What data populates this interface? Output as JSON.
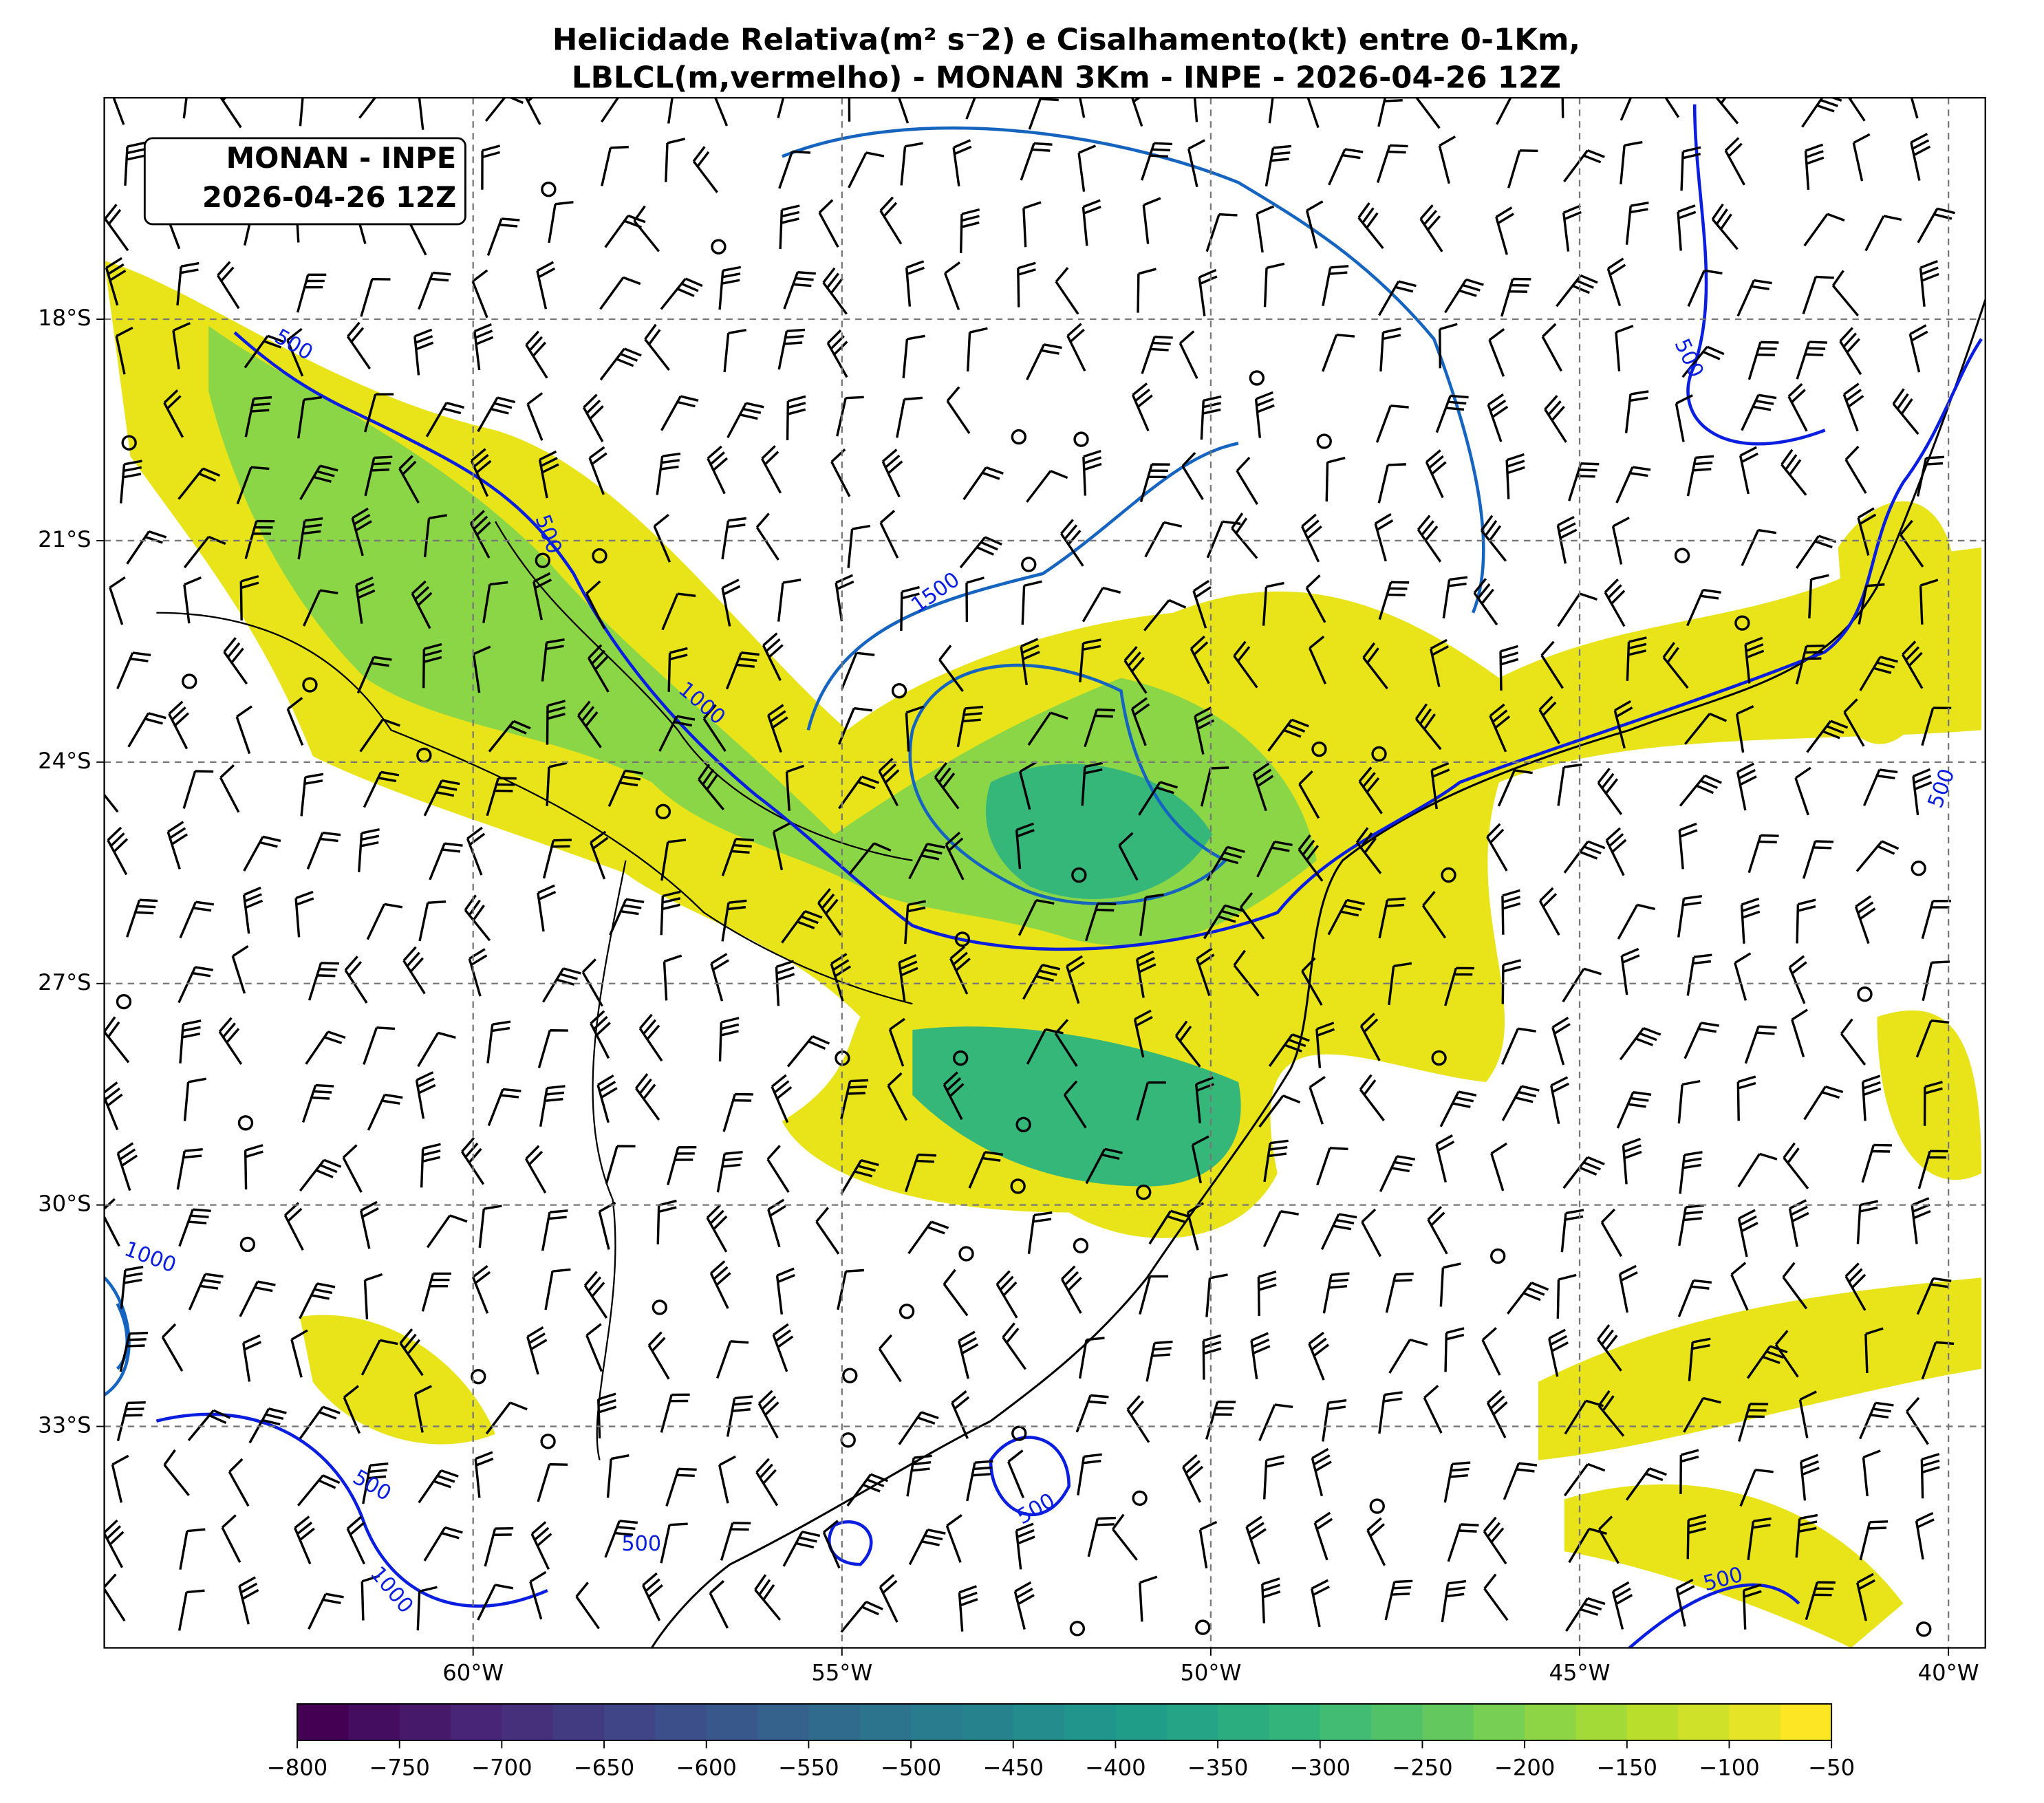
{
  "title": [
    "Helicidade Relativa(m² s⁻2) e Cisalhamento(kt) entre 0-1Km,",
    "LBLCL(m,vermelho) - MONAN 3Km - INPE - 2026-04-26 12Z"
  ],
  "annotation": [
    "MONAN - INPE",
    "2026-04-26 12Z"
  ],
  "map": {
    "lon_range": [
      -65,
      -39.5
    ],
    "lat_range": [
      -36,
      -15
    ],
    "lon_ticks": [
      {
        "value": -60,
        "label": "60°W"
      },
      {
        "value": -55,
        "label": "55°W"
      },
      {
        "value": -50,
        "label": "50°W"
      },
      {
        "value": -45,
        "label": "45°W"
      },
      {
        "value": -40,
        "label": "40°W"
      }
    ],
    "lat_ticks": [
      {
        "value": -18,
        "label": "18°S"
      },
      {
        "value": -21,
        "label": "21°S"
      },
      {
        "value": -24,
        "label": "24°S"
      },
      {
        "value": -27,
        "label": "27°S"
      },
      {
        "value": -30,
        "label": "30°S"
      },
      {
        "value": -33,
        "label": "33°S"
      }
    ],
    "contour_labels": [
      "500",
      "500",
      "1500",
      "1000",
      "500",
      "500",
      "1000",
      "500",
      "1000",
      "500",
      "500",
      "500"
    ]
  },
  "colorbar": {
    "range": [
      -800,
      -50
    ],
    "ticks": [
      {
        "value": -800,
        "label": "−800"
      },
      {
        "value": -750,
        "label": "−750"
      },
      {
        "value": -700,
        "label": "−700"
      },
      {
        "value": -650,
        "label": "−650"
      },
      {
        "value": -600,
        "label": "−600"
      },
      {
        "value": -550,
        "label": "−550"
      },
      {
        "value": -500,
        "label": "−500"
      },
      {
        "value": -450,
        "label": "−450"
      },
      {
        "value": -400,
        "label": "−400"
      },
      {
        "value": -350,
        "label": "−350"
      },
      {
        "value": -300,
        "label": "−300"
      },
      {
        "value": -250,
        "label": "−250"
      },
      {
        "value": -200,
        "label": "−200"
      },
      {
        "value": -150,
        "label": "−150"
      },
      {
        "value": -100,
        "label": "−100"
      },
      {
        "value": -50,
        "label": "−50"
      }
    ]
  }
}
